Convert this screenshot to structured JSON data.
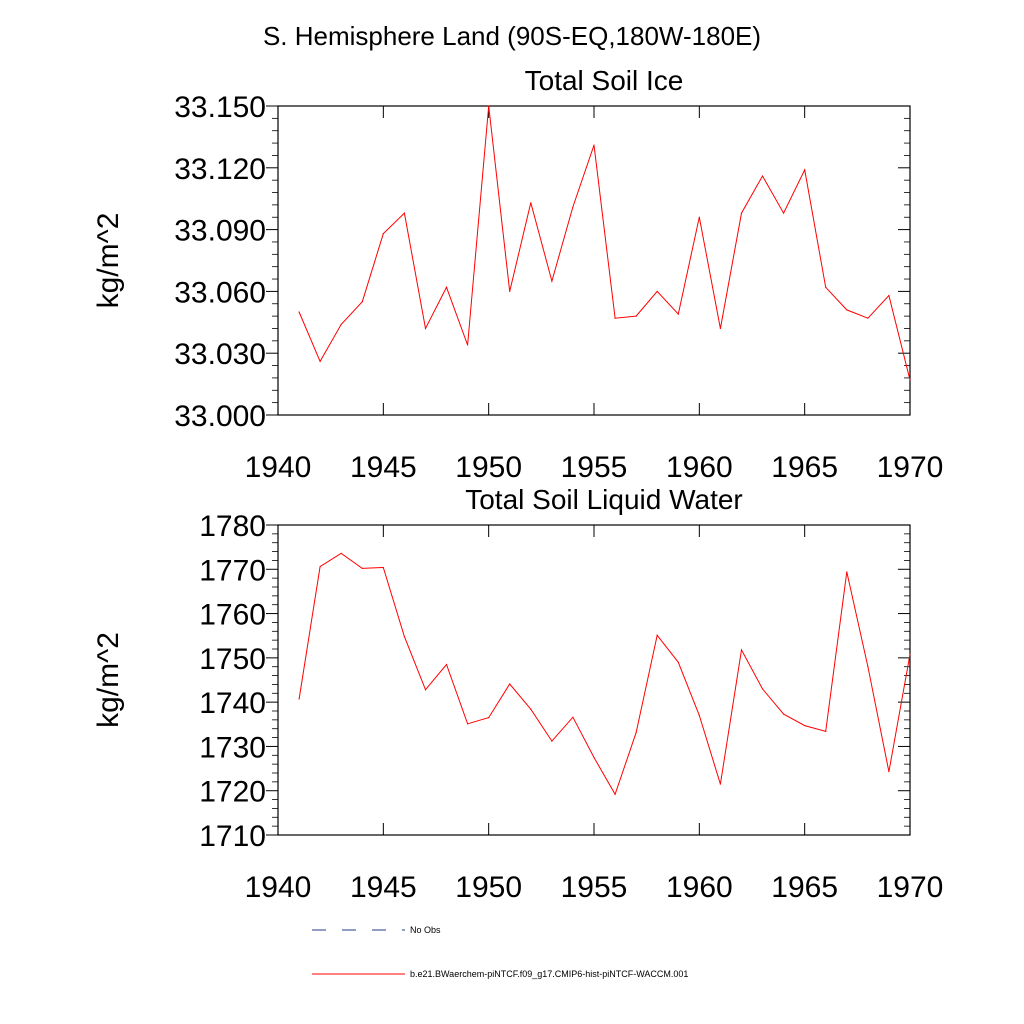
{
  "figure": {
    "title": "S. Hemisphere Land (90S-EQ,180W-180E)"
  },
  "chart_data": [
    {
      "type": "line",
      "title": "Total Soil Ice",
      "xlabel": "",
      "ylabel": "kg/m^2",
      "xlim": [
        1940,
        1970
      ],
      "ylim": [
        33.0,
        33.15
      ],
      "xticks": [
        1940,
        1945,
        1950,
        1955,
        1960,
        1965,
        1970
      ],
      "yticks": [
        33.0,
        33.03,
        33.06,
        33.09,
        33.12,
        33.15
      ],
      "ytick_labels": [
        "33.000",
        "33.030",
        "33.060",
        "33.090",
        "33.120",
        "33.150"
      ],
      "grid": false,
      "x": [
        1941,
        1942,
        1943,
        1944,
        1945,
        1946,
        1947,
        1948,
        1949,
        1950,
        1951,
        1952,
        1953,
        1954,
        1955,
        1956,
        1957,
        1958,
        1959,
        1960,
        1961,
        1962,
        1963,
        1964,
        1965,
        1966,
        1967,
        1968,
        1969,
        1970
      ],
      "series": [
        {
          "name": "b.e21.BWaerchem-piNTCF.f09_g17.CMIP6-hist-piNTCF-WACCM.001",
          "color": "#ff0000",
          "values": [
            33.05,
            33.026,
            33.044,
            33.055,
            33.088,
            33.098,
            33.042,
            33.062,
            33.034,
            33.15,
            33.06,
            33.103,
            33.065,
            33.101,
            33.131,
            33.047,
            33.048,
            33.06,
            33.049,
            33.096,
            33.042,
            33.098,
            33.116,
            33.098,
            33.119,
            33.062,
            33.051,
            33.047,
            33.058,
            33.017
          ]
        }
      ]
    },
    {
      "type": "line",
      "title": "Total Soil Liquid Water",
      "xlabel": "",
      "ylabel": "kg/m^2",
      "xlim": [
        1940,
        1970
      ],
      "ylim": [
        1710,
        1780
      ],
      "xticks": [
        1940,
        1945,
        1950,
        1955,
        1960,
        1965,
        1970
      ],
      "yticks": [
        1710,
        1720,
        1730,
        1740,
        1750,
        1760,
        1770,
        1780
      ],
      "ytick_labels": [
        "1710",
        "1720",
        "1730",
        "1740",
        "1750",
        "1760",
        "1770",
        "1780"
      ],
      "grid": false,
      "x": [
        1941,
        1942,
        1943,
        1944,
        1945,
        1946,
        1947,
        1948,
        1949,
        1950,
        1951,
        1952,
        1953,
        1954,
        1955,
        1956,
        1957,
        1958,
        1959,
        1960,
        1961,
        1962,
        1963,
        1964,
        1965,
        1966,
        1967,
        1968,
        1969,
        1970
      ],
      "series": [
        {
          "name": "b.e21.BWaerchem-piNTCF.f09_g17.CMIP6-hist-piNTCF-WACCM.001",
          "color": "#ff0000",
          "values": [
            1740.7,
            1770.6,
            1773.6,
            1770.2,
            1770.4,
            1754.8,
            1742.8,
            1748.5,
            1735.1,
            1736.5,
            1744.1,
            1738.4,
            1731.2,
            1736.6,
            1727.5,
            1719.2,
            1733.1,
            1755.1,
            1749.0,
            1737.0,
            1721.5,
            1751.8,
            1743.0,
            1737.3,
            1734.7,
            1733.4,
            1769.4,
            1748.0,
            1724.3,
            1750.8
          ]
        }
      ]
    }
  ],
  "legend": {
    "placement": "bottom",
    "entries": [
      {
        "label": "No Obs",
        "style": "dashed",
        "color": "#1f3a8a"
      },
      {
        "label": "b.e21.BWaerchem-piNTCF.f09_g17.CMIP6-hist-piNTCF-WACCM.001",
        "style": "solid",
        "color": "#ff0000"
      }
    ]
  }
}
